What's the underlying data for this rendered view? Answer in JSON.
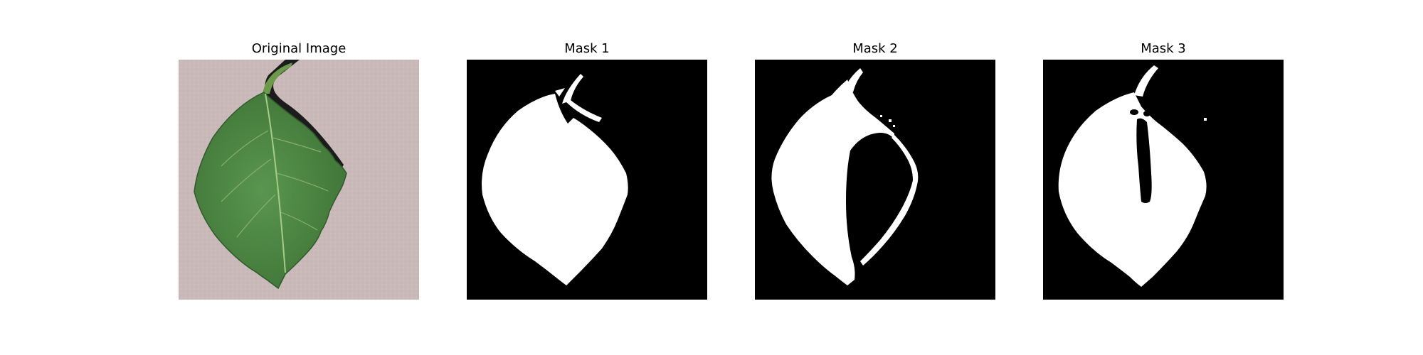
{
  "panels": [
    {
      "title": "Original Image",
      "kind": "photo",
      "subject": "green leaf on a beige paper background"
    },
    {
      "title": "Mask 1",
      "kind": "mask"
    },
    {
      "title": "Mask 2",
      "kind": "mask"
    },
    {
      "title": "Mask 3",
      "kind": "mask"
    }
  ],
  "colors": {
    "background": "#c9b9b9",
    "leaf": "#4f8a45",
    "leaf_dark": "#3a6b34",
    "vein": "#9ec47f",
    "shadow": "#1c1c1c",
    "mask_bg": "#000000",
    "mask_fg": "#ffffff"
  }
}
